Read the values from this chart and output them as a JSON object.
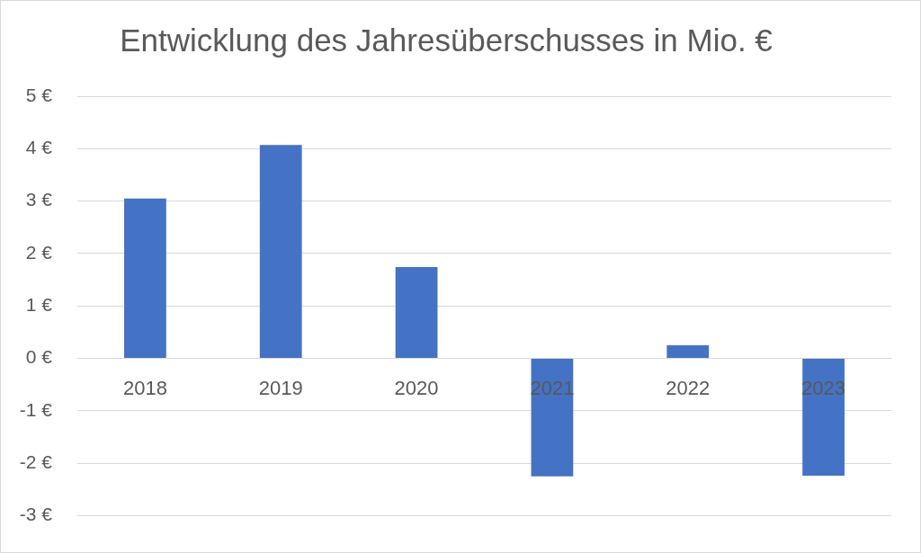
{
  "chart_data": {
    "type": "bar",
    "title": "Entwicklung des Jahresüberschusses in Mio. €",
    "categories": [
      "2018",
      "2019",
      "2020",
      "2021",
      "2022",
      "2023"
    ],
    "values": [
      3.05,
      4.07,
      1.74,
      -2.25,
      0.25,
      -2.24
    ],
    "color": "#4472c4",
    "ylim": [
      -3,
      5
    ],
    "yticks": [
      {
        "value": -3,
        "label": "-3 €"
      },
      {
        "value": -2,
        "label": "-2 €"
      },
      {
        "value": -1,
        "label": "-1 €"
      },
      {
        "value": 0,
        "label": "0 €"
      },
      {
        "value": 1,
        "label": "1 €"
      },
      {
        "value": 2,
        "label": "2 €"
      },
      {
        "value": 3,
        "label": "3 €"
      },
      {
        "value": 4,
        "label": "4 €"
      },
      {
        "value": 5,
        "label": "5 €"
      }
    ],
    "grid": "y"
  }
}
